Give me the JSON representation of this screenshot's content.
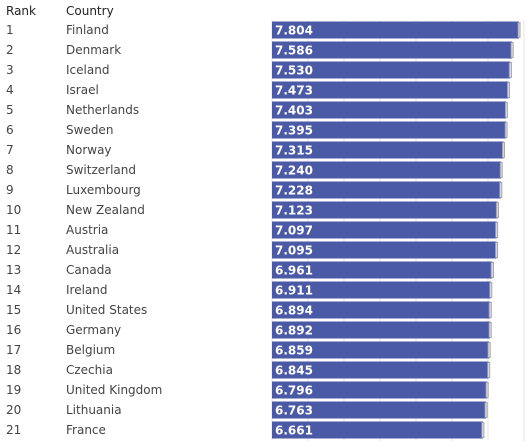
{
  "table": {
    "headers": {
      "rank": "Rank",
      "country": "Country"
    }
  },
  "chart_data": {
    "type": "bar",
    "orientation": "horizontal",
    "xlim": [
      0,
      7.9
    ],
    "grid": true,
    "bar_color": "#4b5aa6",
    "error_color": "#9a9a9a",
    "categories": [
      "Finland",
      "Denmark",
      "Iceland",
      "Israel",
      "Netherlands",
      "Sweden",
      "Norway",
      "Switzerland",
      "Luxembourg",
      "New Zealand",
      "Austria",
      "Australia",
      "Canada",
      "Ireland",
      "United States",
      "Germany",
      "Belgium",
      "Czechia",
      "United Kingdom",
      "Lithuania",
      "France"
    ],
    "ranks": [
      "1",
      "2",
      "3",
      "4",
      "5",
      "6",
      "7",
      "8",
      "9",
      "10",
      "11",
      "12",
      "13",
      "14",
      "15",
      "16",
      "17",
      "18",
      "19",
      "20",
      "21"
    ],
    "values": [
      7.804,
      7.586,
      7.53,
      7.473,
      7.403,
      7.395,
      7.315,
      7.24,
      7.228,
      7.123,
      7.097,
      7.095,
      6.961,
      6.911,
      6.894,
      6.892,
      6.859,
      6.845,
      6.796,
      6.763,
      6.661
    ],
    "value_labels": [
      "7.804",
      "7.586",
      "7.530",
      "7.473",
      "7.403",
      "7.395",
      "7.315",
      "7.240",
      "7.228",
      "7.123",
      "7.097",
      "7.095",
      "6.961",
      "6.911",
      "6.894",
      "6.892",
      "6.859",
      "6.845",
      "6.796",
      "6.763",
      "6.661"
    ],
    "ci_half": [
      0.03,
      0.035,
      0.035,
      0.035,
      0.03,
      0.03,
      0.035,
      0.03,
      0.035,
      0.035,
      0.035,
      0.035,
      0.04,
      0.035,
      0.035,
      0.035,
      0.035,
      0.035,
      0.035,
      0.035,
      0.035
    ]
  }
}
